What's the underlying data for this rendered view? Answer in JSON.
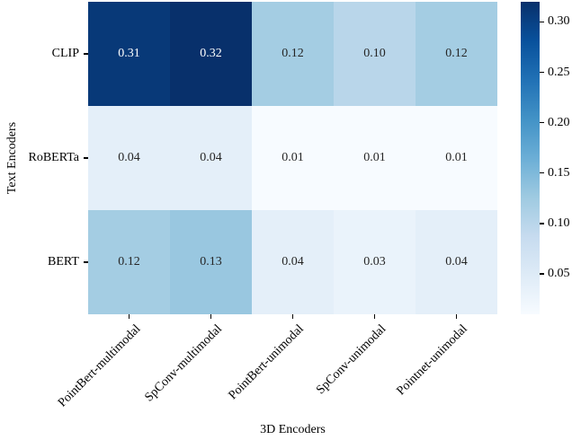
{
  "chart_data": {
    "type": "heatmap",
    "xlabel": "3D Encoders",
    "ylabel": "Text Encoders",
    "x_categories": [
      "PointBert-multimodal",
      "SpConv-multimodal",
      "PointBert-unimodal",
      "SpConv-unimodal",
      "Pointnet-unimodal"
    ],
    "y_categories": [
      "CLIP",
      "RoBERTa",
      "BERT"
    ],
    "series": [
      {
        "name": "CLIP",
        "values": [
          0.31,
          0.32,
          0.12,
          0.1,
          0.12
        ]
      },
      {
        "name": "RoBERTa",
        "values": [
          0.04,
          0.04,
          0.01,
          0.01,
          0.01
        ]
      },
      {
        "name": "BERT",
        "values": [
          0.12,
          0.13,
          0.04,
          0.03,
          0.04
        ]
      }
    ],
    "value_decimals": 2,
    "colormap": "Blues",
    "colormap_stops": [
      "#f7fbff",
      "#deebf7",
      "#c6dbef",
      "#9ecae1",
      "#6baed6",
      "#4292c6",
      "#2171b5",
      "#08519c",
      "#08306b"
    ],
    "vmin": 0.01,
    "vmax": 0.32,
    "colorbar_ticks": [
      0.3,
      0.25,
      0.2,
      0.15,
      0.1,
      0.05
    ],
    "colorbar_position": "right",
    "grid": false,
    "colors": {
      "background": "#ffffff",
      "tick_color": "#000000",
      "annotation_dark": "#262626",
      "annotation_light": "#ffffff"
    }
  }
}
